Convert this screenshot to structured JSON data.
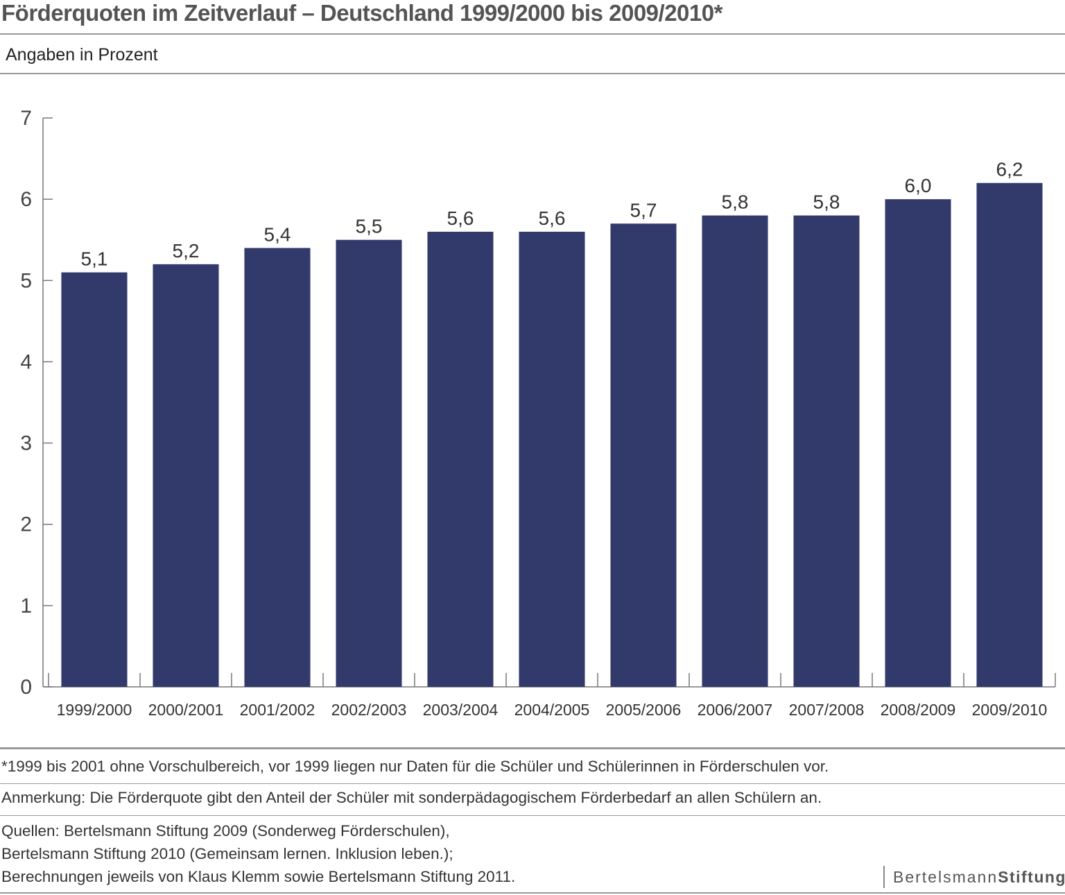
{
  "header": {
    "title": "Förderquoten im Zeitverlauf – Deutschland 1999/2000 bis 2009/2010*",
    "subtitle": "Angaben in Prozent"
  },
  "chart_data": {
    "type": "bar",
    "title": "Förderquoten im Zeitverlauf – Deutschland 1999/2000 bis 2009/2010*",
    "subtitle": "Angaben in Prozent",
    "xlabel": "",
    "ylabel": "",
    "ylim": [
      0,
      7
    ],
    "yticks": [
      "0",
      "1",
      "2",
      "3",
      "4",
      "5",
      "6",
      "7"
    ],
    "categories": [
      "1999/2000",
      "2000/2001",
      "2001/2002",
      "2002/2003",
      "2003/2004",
      "2004/2005",
      "2005/2006",
      "2006/2007",
      "2007/2008",
      "2008/2009",
      "2009/2010"
    ],
    "values": [
      5.1,
      5.2,
      5.4,
      5.5,
      5.6,
      5.6,
      5.7,
      5.8,
      5.8,
      6.0,
      6.2
    ],
    "value_labels": [
      "5,1",
      "5,2",
      "5,4",
      "5,5",
      "5,6",
      "5,6",
      "5,7",
      "5,8",
      "5,8",
      "6,0",
      "6,2"
    ],
    "grid": false,
    "legend": "none",
    "bar_color": "#323a6b",
    "axis_color": "#777777"
  },
  "footer": {
    "note": "*1999 bis 2001 ohne Vorschulbereich, vor 1999 liegen nur Daten für die Schüler und Schülerinnen in Förderschulen vor.",
    "remark": "Anmerkung: Die Förderquote gibt den Anteil der Schüler mit sonderpädagogischem Förderbedarf an allen Schülern an.",
    "sources": [
      "Quellen: Bertelsmann Stiftung 2009 (Sonderweg Förderschulen),",
      "Bertelsmann Stiftung 2010 (Gemeinsam lernen. Inklusion leben.);",
      "Berechnungen jeweils von Klaus Klemm sowie Bertelsmann Stiftung 2011."
    ],
    "brand_part1": "Bertelsmann",
    "brand_part2": "Stiftung"
  }
}
